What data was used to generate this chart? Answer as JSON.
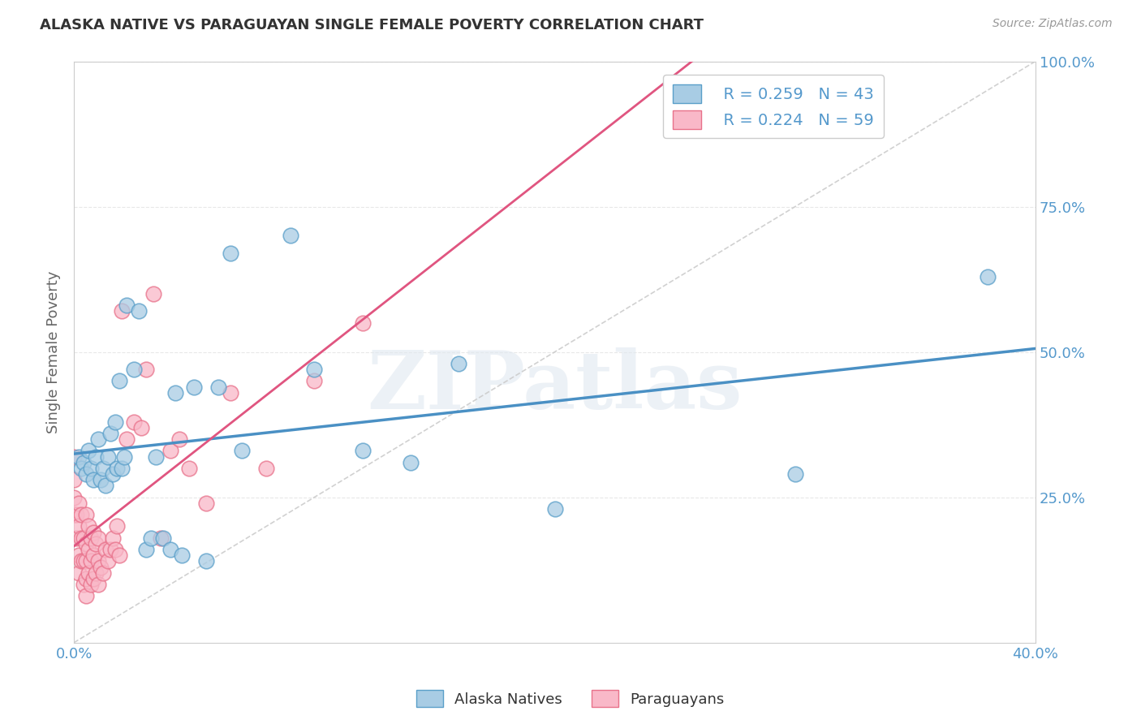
{
  "title": "ALASKA NATIVE VS PARAGUAYAN SINGLE FEMALE POVERTY CORRELATION CHART",
  "source": "Source: ZipAtlas.com",
  "ylabel": "Single Female Poverty",
  "legend_alaska_R": "R = 0.259",
  "legend_alaska_N": "N = 43",
  "legend_para_R": "R = 0.224",
  "legend_para_N": "N = 59",
  "alaska_color": "#a8cce4",
  "para_color": "#f9b8c8",
  "alaska_edge_color": "#5a9fc9",
  "para_edge_color": "#e8718a",
  "alaska_line_color": "#4a90c4",
  "para_line_color": "#e05580",
  "diag_line_color": "#cccccc",
  "background_color": "#ffffff",
  "grid_color": "#e8e8e8",
  "tick_color": "#5599cc",
  "title_color": "#333333",
  "source_color": "#999999",
  "ylabel_color": "#666666",
  "watermark": "ZIPatlas",
  "alaska_points_x": [
    0.002,
    0.003,
    0.004,
    0.005,
    0.006,
    0.007,
    0.008,
    0.009,
    0.01,
    0.011,
    0.012,
    0.013,
    0.014,
    0.015,
    0.016,
    0.017,
    0.018,
    0.019,
    0.02,
    0.021,
    0.022,
    0.025,
    0.027,
    0.03,
    0.032,
    0.034,
    0.037,
    0.04,
    0.042,
    0.045,
    0.05,
    0.055,
    0.06,
    0.065,
    0.07,
    0.09,
    0.1,
    0.12,
    0.14,
    0.16,
    0.2,
    0.3,
    0.38
  ],
  "alaska_points_y": [
    0.32,
    0.3,
    0.31,
    0.29,
    0.33,
    0.3,
    0.28,
    0.32,
    0.35,
    0.28,
    0.3,
    0.27,
    0.32,
    0.36,
    0.29,
    0.38,
    0.3,
    0.45,
    0.3,
    0.32,
    0.58,
    0.47,
    0.57,
    0.16,
    0.18,
    0.32,
    0.18,
    0.16,
    0.43,
    0.15,
    0.44,
    0.14,
    0.44,
    0.67,
    0.33,
    0.7,
    0.47,
    0.33,
    0.31,
    0.48,
    0.23,
    0.29,
    0.63
  ],
  "para_points_x": [
    0.0,
    0.0,
    0.0,
    0.0,
    0.001,
    0.001,
    0.002,
    0.002,
    0.002,
    0.002,
    0.003,
    0.003,
    0.003,
    0.004,
    0.004,
    0.004,
    0.005,
    0.005,
    0.005,
    0.005,
    0.005,
    0.006,
    0.006,
    0.006,
    0.007,
    0.007,
    0.007,
    0.008,
    0.008,
    0.008,
    0.009,
    0.009,
    0.01,
    0.01,
    0.01,
    0.011,
    0.012,
    0.013,
    0.014,
    0.015,
    0.016,
    0.017,
    0.018,
    0.019,
    0.02,
    0.022,
    0.025,
    0.028,
    0.03,
    0.033,
    0.036,
    0.04,
    0.044,
    0.048,
    0.055,
    0.065,
    0.08,
    0.1,
    0.12
  ],
  "para_points_y": [
    0.22,
    0.25,
    0.28,
    0.32,
    0.18,
    0.22,
    0.12,
    0.15,
    0.2,
    0.24,
    0.14,
    0.18,
    0.22,
    0.1,
    0.14,
    0.18,
    0.08,
    0.11,
    0.14,
    0.17,
    0.22,
    0.12,
    0.16,
    0.2,
    0.1,
    0.14,
    0.18,
    0.11,
    0.15,
    0.19,
    0.12,
    0.17,
    0.1,
    0.14,
    0.18,
    0.13,
    0.12,
    0.16,
    0.14,
    0.16,
    0.18,
    0.16,
    0.2,
    0.15,
    0.57,
    0.35,
    0.38,
    0.37,
    0.47,
    0.6,
    0.18,
    0.33,
    0.35,
    0.3,
    0.24,
    0.43,
    0.3,
    0.45,
    0.55
  ],
  "xlim": [
    0.0,
    0.4
  ],
  "ylim": [
    0.0,
    1.0
  ],
  "yticks": [
    0.0,
    0.25,
    0.5,
    0.75,
    1.0
  ],
  "ytick_labels": [
    "",
    "25.0%",
    "50.0%",
    "75.0%",
    "100.0%"
  ],
  "xtick_labels": [
    "0.0%",
    "",
    "",
    "",
    "",
    "40.0%"
  ],
  "figsize": [
    14.06,
    8.92
  ],
  "dpi": 100
}
